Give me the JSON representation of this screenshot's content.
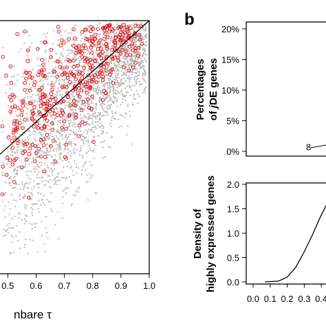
{
  "chart_data": [
    {
      "panel": "a",
      "type": "scatter",
      "xlabel": "nbare τ",
      "xticks": [
        "0.5",
        "0.6",
        "0.7",
        "0.8",
        "0.9",
        "1.0"
      ],
      "xlim": [
        0.47,
        1.0
      ],
      "ylim": [
        0.0,
        1.0
      ],
      "diagonal": true,
      "colors": {
        "background_points": "#b9bebb",
        "highlighted_points": "#e0191c",
        "diagonal": "#000000"
      },
      "series": [
        {
          "role": "background",
          "marker": "dot",
          "density": "dense"
        },
        {
          "role": "highlighted",
          "marker": "open-circle",
          "density": "sparse"
        }
      ]
    },
    {
      "panel": "b",
      "letter": "b",
      "type": "line",
      "ylabel_lines": [
        "Percentages",
        "of jDE genes"
      ],
      "yticks": [
        "0%",
        "5%",
        "10%",
        "15%",
        "20%"
      ],
      "ylim": [
        0,
        20
      ],
      "series_marker": "8",
      "values_visible": [
        {
          "x": 0.4,
          "y": 0.6
        },
        {
          "x": 1.0,
          "y": 1.3
        }
      ]
    },
    {
      "panel": "b-bottom",
      "type": "line",
      "ylabel_lines": [
        "Density of",
        "highly expressed genes"
      ],
      "yticks": [
        "0.0",
        "0.5",
        "1.0",
        "1.5",
        "2.0"
      ],
      "xticks": [
        "0.0",
        "0.1",
        "0.2",
        "0.3",
        "0.4"
      ],
      "ylim": [
        0,
        2.0
      ],
      "xlim": [
        0.0,
        0.44
      ],
      "values": [
        {
          "x": 0.07,
          "y": 0.0
        },
        {
          "x": 0.15,
          "y": 0.02
        },
        {
          "x": 0.2,
          "y": 0.1
        },
        {
          "x": 0.25,
          "y": 0.3
        },
        {
          "x": 0.3,
          "y": 0.62
        },
        {
          "x": 0.35,
          "y": 0.98
        },
        {
          "x": 0.39,
          "y": 1.3
        },
        {
          "x": 0.44,
          "y": 1.65
        }
      ]
    }
  ]
}
